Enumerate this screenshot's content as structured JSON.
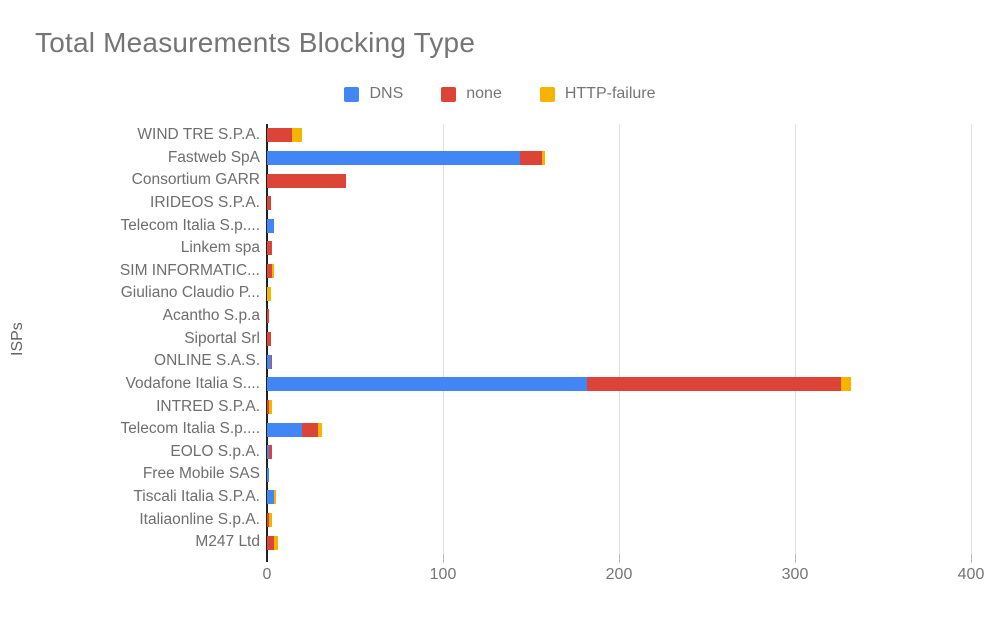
{
  "title": "Total Measurements Blocking Type",
  "y_axis_title": "ISPs",
  "legend": [
    {
      "label": "DNS",
      "color": "#4285f4"
    },
    {
      "label": "none",
      "color": "#db4437"
    },
    {
      "label": "HTTP-failure",
      "color": "#f4b400"
    }
  ],
  "colors": {
    "dns": "#4285f4",
    "none": "#db4437",
    "http_failure": "#f4b400",
    "axis_line": "#212121",
    "gridline": "#e0e0e0",
    "title_text": "#757575",
    "label_text": "#6e6e6e"
  },
  "chart_data": {
    "type": "bar",
    "orientation": "horizontal",
    "stacked": true,
    "title": "Total Measurements Blocking Type",
    "xlabel": "",
    "ylabel": "ISPs",
    "xlim": [
      0,
      400
    ],
    "x_ticks": [
      0,
      100,
      200,
      300,
      400
    ],
    "grid": true,
    "legend_position": "top",
    "categories": [
      "WIND TRE S.P.A.",
      "Fastweb SpA",
      "Consortium GARR",
      "IRIDEOS S.P.A.",
      "Telecom Italia S.p....",
      "Linkem spa",
      "SIM INFORMATIC...",
      "Giuliano Claudio P...",
      "Acantho S.p.a",
      "Siportal Srl",
      "ONLINE S.A.S.",
      "Vodafone Italia S....",
      "INTRED S.P.A.",
      "Telecom Italia S.p....",
      "EOLO S.p.A.",
      "Free Mobile SAS",
      "Tiscali Italia S.P.A.",
      "Italiaonline S.p.A.",
      "M247 Ltd"
    ],
    "series": [
      {
        "name": "DNS",
        "color": "#4285f4",
        "values": [
          0,
          144,
          0,
          0,
          4,
          0,
          0,
          0,
          0,
          0,
          2,
          182,
          0,
          20,
          1,
          1,
          4,
          0,
          0
        ]
      },
      {
        "name": "none",
        "color": "#db4437",
        "values": [
          14,
          12,
          45,
          2,
          0,
          3,
          3,
          0,
          1,
          2,
          1,
          144,
          1,
          9,
          2,
          0,
          0,
          1,
          4
        ]
      },
      {
        "name": "HTTP-failure",
        "color": "#f4b400",
        "values": [
          6,
          2,
          0,
          0,
          0,
          0,
          1,
          2,
          0,
          0,
          0,
          6,
          2,
          2,
          0,
          0,
          1,
          2,
          2
        ]
      }
    ]
  }
}
